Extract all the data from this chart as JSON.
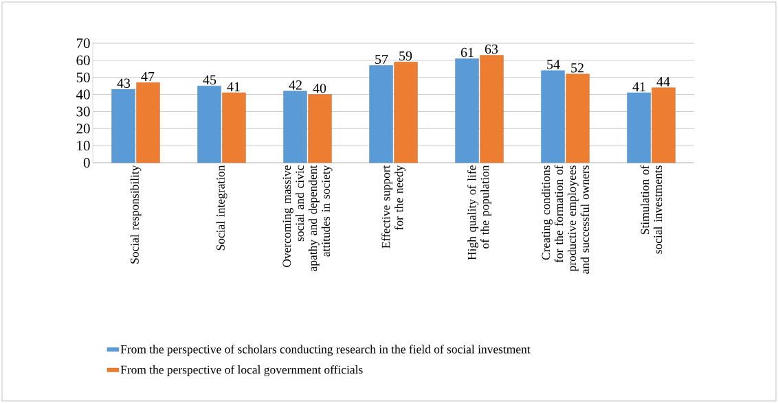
{
  "chart_data": {
    "type": "bar",
    "categories": [
      "Social responsibility",
      "Social integration",
      "Overcoming massive social and civic apathy and dependent attitudes in society",
      "Effective support for the needy",
      "High quality of life of the population",
      "Creating conditions for the formation of productive employees and successful owners",
      "Stimulation of social investments"
    ],
    "series": [
      {
        "name": "From the perspective of scholars conducting research in the field of social investment",
        "color": "#5b9bd5",
        "values": [
          43,
          45,
          42,
          57,
          61,
          54,
          41
        ]
      },
      {
        "name": "From the perspective of local government officials",
        "color": "#ed7d31",
        "values": [
          47,
          41,
          40,
          59,
          63,
          52,
          44
        ]
      }
    ],
    "ylim": [
      0,
      70
    ],
    "yticks": [
      0,
      10,
      20,
      30,
      40,
      50,
      60,
      70
    ],
    "grid": "y",
    "legend": "bottom",
    "data_labels": true
  }
}
